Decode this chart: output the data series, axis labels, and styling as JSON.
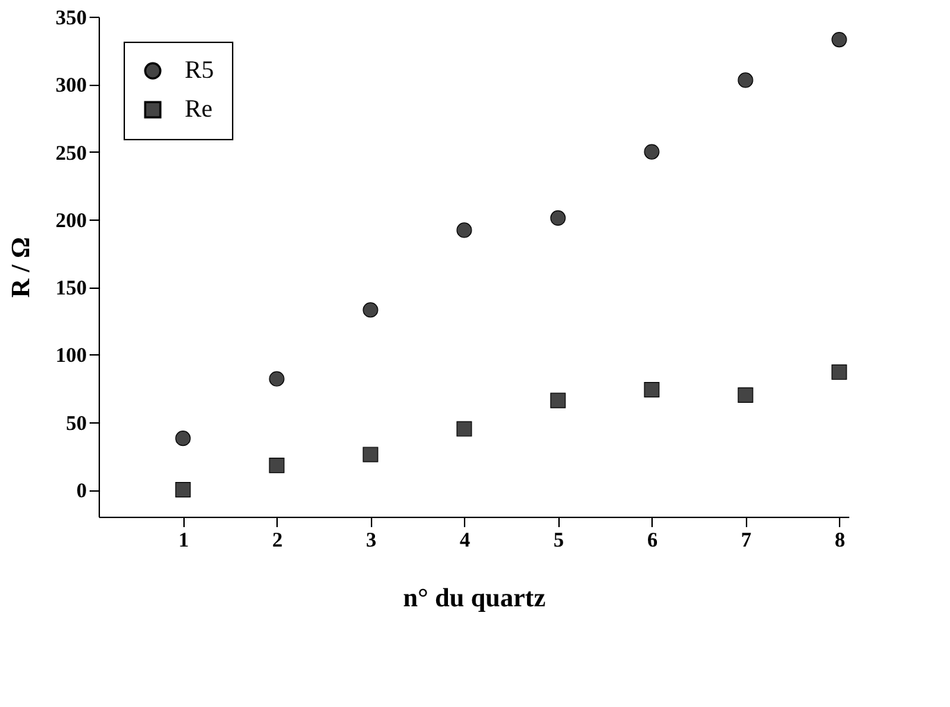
{
  "chart_data": {
    "type": "scatter",
    "xlabel": "n° du quartz",
    "ylabel": "R / Ω",
    "x": [
      1,
      2,
      3,
      4,
      5,
      6,
      7,
      8
    ],
    "series": [
      {
        "name": "R5",
        "color": "#444444",
        "marker": "circle",
        "values": [
          38,
          82,
          133,
          192,
          201,
          250,
          303,
          333
        ]
      },
      {
        "name": "Re",
        "color": "#444444",
        "marker": "square",
        "values": [
          0,
          18,
          26,
          45,
          66,
          74,
          70,
          87
        ]
      }
    ],
    "xlim": [
      0.1,
      8.1
    ],
    "xticks": [
      1,
      2,
      3,
      4,
      5,
      6,
      7,
      8
    ],
    "ylim": [
      -20,
      350
    ],
    "yticks": [
      0,
      50,
      100,
      150,
      200,
      250,
      300,
      350
    ],
    "grid": false,
    "legend": "top left"
  }
}
